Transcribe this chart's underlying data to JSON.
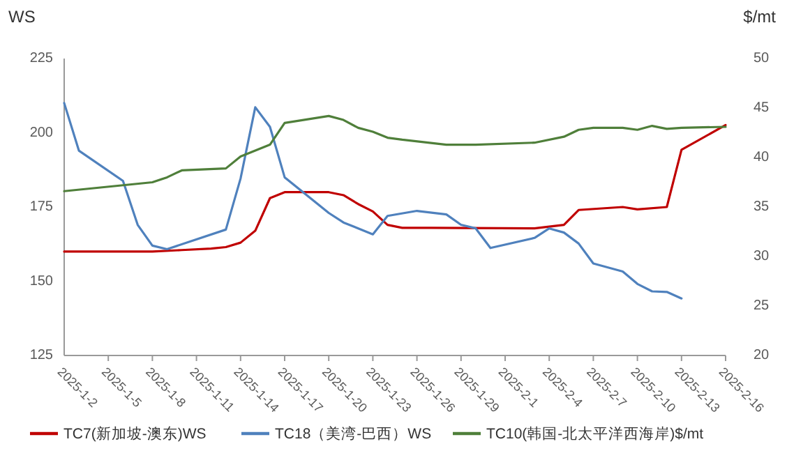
{
  "chart_data": {
    "type": "line",
    "ylabel": "WS",
    "y2label": "$/mt",
    "xlim": [
      "2025-01-02",
      "2025-02-16"
    ],
    "xticks": [
      {
        "value": "2025-01-02",
        "label": "2025-1-2"
      },
      {
        "value": "2025-01-05",
        "label": "2025-1-5"
      },
      {
        "value": "2025-01-08",
        "label": "2025-1-8"
      },
      {
        "value": "2025-01-11",
        "label": "2025-1-11"
      },
      {
        "value": "2025-01-14",
        "label": "2025-1-14"
      },
      {
        "value": "2025-01-17",
        "label": "2025-1-17"
      },
      {
        "value": "2025-01-20",
        "label": "2025-1-20"
      },
      {
        "value": "2025-01-23",
        "label": "2025-1-23"
      },
      {
        "value": "2025-01-26",
        "label": "2025-1-26"
      },
      {
        "value": "2025-01-29",
        "label": "2025-1-29"
      },
      {
        "value": "2025-02-01",
        "label": "2025-2-1"
      },
      {
        "value": "2025-02-04",
        "label": "2025-2-4"
      },
      {
        "value": "2025-02-07",
        "label": "2025-2-7"
      },
      {
        "value": "2025-02-10",
        "label": "2025-2-10"
      },
      {
        "value": "2025-02-13",
        "label": "2025-2-13"
      },
      {
        "value": "2025-02-16",
        "label": "2025-2-16"
      }
    ],
    "ylim": [
      125,
      225
    ],
    "yticks": [
      125,
      150,
      175,
      200,
      225
    ],
    "y2lim": [
      20,
      50
    ],
    "y2ticks": [
      20,
      25,
      30,
      35,
      40,
      45,
      50
    ],
    "legend": "bottom",
    "grid": false,
    "series": [
      {
        "name": "TC7(新加坡-澳东)WS",
        "color": "#c00000",
        "x": [
          "2025-01-02",
          "2025-01-05",
          "2025-01-08",
          "2025-01-10",
          "2025-01-12",
          "2025-01-13",
          "2025-01-14",
          "2025-01-15",
          "2025-01-16",
          "2025-01-17",
          "2025-01-20",
          "2025-01-21",
          "2025-01-22",
          "2025-01-23",
          "2025-01-24",
          "2025-01-25",
          "2025-01-27",
          "2025-02-03",
          "2025-02-05",
          "2025-02-06",
          "2025-02-09",
          "2025-02-10",
          "2025-02-12",
          "2025-02-13",
          "2025-02-16"
        ],
        "values": [
          160,
          160,
          160,
          160.5,
          161,
          161.5,
          163,
          167,
          178,
          180,
          180,
          179,
          176,
          173.5,
          169,
          168,
          168,
          167.8,
          169,
          174,
          175,
          174.2,
          175,
          194.3,
          202.6
        ]
      },
      {
        "name": "TC18（美湾-巴西）WS",
        "color": "#4f81bd",
        "x": [
          "2025-01-02",
          "2025-01-03",
          "2025-01-06",
          "2025-01-07",
          "2025-01-08",
          "2025-01-09",
          "2025-01-13",
          "2025-01-14",
          "2025-01-15",
          "2025-01-16",
          "2025-01-17",
          "2025-01-20",
          "2025-01-21",
          "2025-01-23",
          "2025-01-24",
          "2025-01-26",
          "2025-01-28",
          "2025-01-29",
          "2025-01-30",
          "2025-01-31",
          "2025-02-03",
          "2025-02-04",
          "2025-02-05",
          "2025-02-06",
          "2025-02-07",
          "2025-02-09",
          "2025-02-10",
          "2025-02-11",
          "2025-02-12",
          "2025-02-13"
        ],
        "values": [
          210,
          194,
          183.8,
          169,
          162,
          160.8,
          167.4,
          184.6,
          208.6,
          202,
          185,
          173,
          169.8,
          165.8,
          172,
          173.7,
          172.5,
          169,
          167.8,
          161.2,
          164.6,
          167.8,
          166.4,
          162.7,
          156,
          153.3,
          149.1,
          146.6,
          146.4,
          144.2
        ]
      },
      {
        "name": "TC10(韩国-北太平洋西海岸)$/mt",
        "color": "#4f7f3a",
        "axis": "y2",
        "x": [
          "2025-01-02",
          "2025-01-06",
          "2025-01-08",
          "2025-01-09",
          "2025-01-10",
          "2025-01-13",
          "2025-01-14",
          "2025-01-16",
          "2025-01-17",
          "2025-01-20",
          "2025-01-21",
          "2025-01-22",
          "2025-01-23",
          "2025-01-24",
          "2025-01-25",
          "2025-01-28",
          "2025-01-30",
          "2025-02-03",
          "2025-02-05",
          "2025-02-06",
          "2025-02-07",
          "2025-02-09",
          "2025-02-10",
          "2025-02-11",
          "2025-02-12",
          "2025-02-13",
          "2025-02-16"
        ],
        "values": [
          36.6,
          37.2,
          37.5,
          38.0,
          38.7,
          38.9,
          40.1,
          41.3,
          43.5,
          44.2,
          43.8,
          43.0,
          42.6,
          42.0,
          41.8,
          41.3,
          41.3,
          41.5,
          42.1,
          42.8,
          43.0,
          43.0,
          42.8,
          43.2,
          42.9,
          43.0,
          43.1
        ]
      }
    ]
  }
}
